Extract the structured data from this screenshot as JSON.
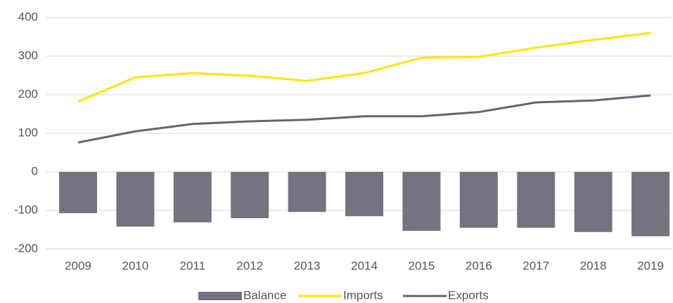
{
  "chart_data": {
    "type": "combo",
    "categories": [
      "2009",
      "2010",
      "2011",
      "2012",
      "2013",
      "2014",
      "2015",
      "2016",
      "2017",
      "2018",
      "2019"
    ],
    "series": [
      {
        "name": "Balance",
        "type": "bar",
        "color": "#747480",
        "values": [
          -107,
          -142,
          -131,
          -120,
          -104,
          -115,
          -153,
          -145,
          -145,
          -156,
          -167
        ]
      },
      {
        "name": "Imports",
        "type": "line",
        "color": "#ffe600",
        "values": [
          182,
          245,
          256,
          249,
          236,
          256,
          296,
          298,
          322,
          342,
          360
        ]
      },
      {
        "name": "Exports",
        "type": "line",
        "color": "#646472",
        "values": [
          76,
          105,
          124,
          131,
          135,
          144,
          144,
          155,
          180,
          185,
          198
        ]
      }
    ],
    "ylim": [
      -200,
      400
    ],
    "yticks": [
      -200,
      -100,
      0,
      100,
      200,
      300,
      400
    ],
    "grid": true,
    "legend": "bottom"
  }
}
